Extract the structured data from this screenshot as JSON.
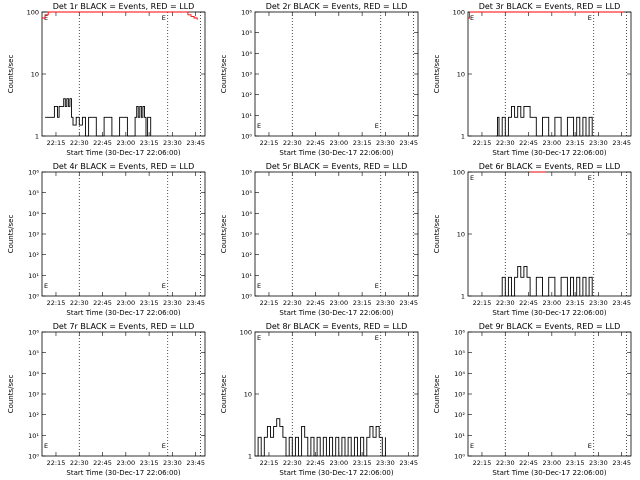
{
  "chart_data": [
    {
      "type": "line",
      "title": "Det 1r BLACK = Events, RED = LLD",
      "xlabel": "Start Time (30-Dec-17 22:06:00)",
      "ylabel": "Counts/sec",
      "yscale": "log",
      "ylim": [
        1,
        100
      ],
      "y_tick_labels": [
        "1",
        "10",
        "100"
      ],
      "x_tick_labels": [
        "22:15",
        "22:30",
        "22:45",
        "23:00",
        "23:15",
        "23:30",
        "23:45"
      ],
      "xlim_min": [
        0,
        105
      ],
      "markers_min": [
        24,
        81,
        102
      ],
      "series": [
        {
          "name": "Events",
          "color": "#000000",
          "x": [
            2,
            7,
            8,
            10,
            11,
            13,
            14,
            15,
            16,
            17,
            18,
            19,
            20,
            22,
            24,
            26,
            28,
            30,
            35,
            40,
            45,
            50,
            55,
            60,
            61,
            62,
            63,
            64,
            65,
            66,
            67,
            68,
            70
          ],
          "y": [
            2,
            2,
            3,
            2,
            3,
            3,
            4,
            3,
            4,
            3,
            4,
            2,
            1.5,
            2,
            1.5,
            2,
            1,
            2,
            1,
            2,
            1,
            2,
            1,
            2,
            3,
            2,
            3,
            2,
            3,
            2,
            1,
            2,
            1
          ]
        },
        {
          "name": "LLD",
          "color": "#ff0000",
          "x": [
            0,
            2,
            4,
            6,
            8,
            10,
            12,
            14,
            16,
            18,
            20,
            24,
            28,
            32,
            36,
            40,
            44,
            48,
            52,
            56,
            60,
            64,
            68,
            72,
            76,
            78,
            80,
            82,
            84,
            86,
            88,
            90,
            92,
            94,
            96,
            98,
            100
          ],
          "y": [
            80,
            90,
            100,
            100,
            100,
            100,
            100,
            100,
            100,
            100,
            100,
            100,
            100,
            100,
            100,
            100,
            100,
            100,
            100,
            100,
            100,
            100,
            100,
            100,
            100,
            100,
            100,
            100,
            100,
            100,
            100,
            100,
            100,
            90,
            85,
            80,
            75
          ]
        }
      ]
    },
    {
      "type": "line",
      "title": "Det 2r BLACK = Events, RED = LLD",
      "xlabel": "Start Time (30-Dec-17 22:06:00)",
      "ylabel": "Counts/sec",
      "yscale": "log",
      "ylim": [
        1,
        1000000
      ],
      "y_tick_labels": [
        "10⁰",
        "10¹",
        "10²",
        "10³",
        "10⁴",
        "10⁵",
        "10⁶"
      ],
      "x_tick_labels": [
        "22:15",
        "22:30",
        "22:45",
        "23:00",
        "23:15",
        "23:30",
        "23:45"
      ],
      "xlim_min": [
        0,
        105
      ],
      "markers_min": [
        24,
        81,
        102
      ],
      "series": []
    },
    {
      "type": "line",
      "title": "Det 3r BLACK = Events, RED = LLD",
      "xlabel": "Start Time (30-Dec-17 22:06:00)",
      "ylabel": "Counts/sec",
      "yscale": "log",
      "ylim": [
        1,
        100
      ],
      "y_tick_labels": [
        "1",
        "10",
        "100"
      ],
      "x_tick_labels": [
        "22:15",
        "22:30",
        "22:45",
        "23:00",
        "23:15",
        "23:30",
        "23:45"
      ],
      "xlim_min": [
        0,
        105
      ],
      "markers_min": [
        24,
        81,
        102
      ],
      "series": [
        {
          "name": "Events",
          "color": "#000000",
          "x": [
            18,
            19,
            20,
            22,
            24,
            26,
            28,
            30,
            32,
            34,
            36,
            40,
            44,
            48,
            52,
            56,
            60,
            64,
            68,
            70,
            72,
            74,
            76,
            78,
            80
          ],
          "y": [
            1,
            2,
            1,
            2,
            1,
            2,
            3,
            2,
            3,
            2,
            3,
            2,
            1,
            2,
            1,
            2,
            1,
            2,
            1,
            2,
            1,
            2,
            1,
            2,
            1
          ]
        },
        {
          "name": "LLD",
          "color": "#ff0000",
          "x": [
            0,
            1,
            3,
            5,
            8,
            12,
            16,
            20,
            24,
            28,
            32,
            36,
            40,
            44,
            48,
            52,
            56,
            60,
            64,
            68,
            72,
            76,
            80,
            84,
            88,
            92,
            96,
            100
          ],
          "y": [
            80,
            100,
            100,
            100,
            100,
            100,
            100,
            100,
            100,
            100,
            100,
            100,
            100,
            100,
            100,
            100,
            100,
            100,
            100,
            100,
            100,
            100,
            100,
            100,
            100,
            100,
            100,
            100
          ]
        }
      ]
    },
    {
      "type": "line",
      "title": "Det 4r BLACK = Events, RED = LLD",
      "xlabel": "Start Time (30-Dec-17 22:06:00)",
      "ylabel": "Counts/sec",
      "yscale": "log",
      "ylim": [
        1,
        1000000
      ],
      "y_tick_labels": [
        "10⁰",
        "10¹",
        "10²",
        "10³",
        "10⁴",
        "10⁵",
        "10⁶"
      ],
      "x_tick_labels": [
        "22:15",
        "22:30",
        "22:45",
        "23:00",
        "23:15",
        "23:30",
        "23:45"
      ],
      "xlim_min": [
        0,
        105
      ],
      "markers_min": [
        24,
        81,
        102
      ],
      "series": []
    },
    {
      "type": "line",
      "title": "Det 5r BLACK = Events, RED = LLD",
      "xlabel": "Start Time (30-Dec-17 22:06:00)",
      "ylabel": "Counts/sec",
      "yscale": "log",
      "ylim": [
        1,
        1000000
      ],
      "y_tick_labels": [
        "10⁰",
        "10¹",
        "10²",
        "10³",
        "10⁴",
        "10⁵",
        "10⁶"
      ],
      "x_tick_labels": [
        "22:15",
        "22:30",
        "22:45",
        "23:00",
        "23:15",
        "23:30",
        "23:45"
      ],
      "xlim_min": [
        0,
        105
      ],
      "markers_min": [
        24,
        81,
        102
      ],
      "series": []
    },
    {
      "type": "line",
      "title": "Det 6r BLACK = Events, RED = LLD",
      "xlabel": "Start Time (30-Dec-17 22:06:00)",
      "ylabel": "Counts/sec",
      "yscale": "log",
      "ylim": [
        1,
        100
      ],
      "y_tick_labels": [
        "1",
        "10",
        "100"
      ],
      "x_tick_labels": [
        "22:15",
        "22:30",
        "22:45",
        "23:00",
        "23:15",
        "23:30",
        "23:45"
      ],
      "xlim_min": [
        0,
        105
      ],
      "markers_min": [
        24,
        81,
        102
      ],
      "series": [
        {
          "name": "Events",
          "color": "#000000",
          "x": [
            20,
            22,
            24,
            26,
            28,
            30,
            32,
            34,
            36,
            38,
            40,
            44,
            48,
            52,
            56,
            60,
            64,
            66,
            68,
            70,
            72,
            74,
            76,
            78,
            80
          ],
          "y": [
            1,
            2,
            1,
            2,
            1,
            2,
            3,
            2,
            3,
            2,
            1,
            2,
            1,
            2,
            1,
            2,
            1,
            2,
            1,
            2,
            1,
            2,
            1,
            2,
            1
          ]
        },
        {
          "name": "LLD",
          "color": "#ff0000",
          "x": [
            40,
            45,
            50
          ],
          "y": [
            100,
            100,
            100
          ]
        }
      ]
    },
    {
      "type": "line",
      "title": "Det 7r BLACK = Events, RED = LLD",
      "xlabel": "Start Time (30-Dec-17 22:06:00)",
      "ylabel": "Counts/sec",
      "yscale": "log",
      "ylim": [
        1,
        1000000
      ],
      "y_tick_labels": [
        "10⁰",
        "10¹",
        "10²",
        "10³",
        "10⁴",
        "10⁵",
        "10⁶"
      ],
      "x_tick_labels": [
        "22:15",
        "22:30",
        "22:45",
        "23:00",
        "23:15",
        "23:30",
        "23:45"
      ],
      "xlim_min": [
        0,
        105
      ],
      "markers_min": [
        24,
        81,
        102
      ],
      "series": []
    },
    {
      "type": "line",
      "title": "Det 8r BLACK = Events, RED = LLD",
      "xlabel": "Start Time (30-Dec-17 22:06:00)",
      "ylabel": "Counts/sec",
      "yscale": "log",
      "ylim": [
        1,
        100
      ],
      "y_tick_labels": [
        "1",
        "10",
        "100"
      ],
      "x_tick_labels": [
        "22:15",
        "22:30",
        "22:45",
        "23:00",
        "23:15",
        "23:30",
        "23:45"
      ],
      "xlim_min": [
        0,
        105
      ],
      "markers_min": [
        24,
        81,
        102
      ],
      "series": [
        {
          "name": "Events",
          "color": "#000000",
          "x": [
            0,
            2,
            4,
            6,
            8,
            10,
            12,
            14,
            16,
            18,
            20,
            22,
            24,
            26,
            28,
            30,
            32,
            34,
            36,
            38,
            40,
            42,
            44,
            46,
            48,
            50,
            52,
            54,
            56,
            58,
            60,
            62,
            64,
            66,
            68,
            70,
            72,
            74,
            76,
            78,
            80,
            82,
            84
          ],
          "y": [
            1,
            2,
            1,
            2,
            3,
            2,
            3,
            4,
            3,
            2,
            1,
            2,
            1,
            2,
            1,
            3,
            2,
            1,
            2,
            1,
            2,
            1,
            2,
            1,
            2,
            1,
            2,
            1,
            2,
            1,
            2,
            1,
            2,
            1,
            2,
            1,
            2,
            3,
            2,
            3,
            2,
            1,
            2
          ]
        }
      ]
    },
    {
      "type": "line",
      "title": "Det 9r BLACK = Events, RED = LLD",
      "xlabel": "Start Time (30-Dec-17 22:06:00)",
      "ylabel": "Counts/sec",
      "yscale": "log",
      "ylim": [
        1,
        1000000
      ],
      "y_tick_labels": [
        "10⁰",
        "10¹",
        "10²",
        "10³",
        "10⁴",
        "10⁵",
        "10⁶"
      ],
      "x_tick_labels": [
        "22:15",
        "22:30",
        "22:45",
        "23:00",
        "23:15",
        "23:30",
        "23:45"
      ],
      "xlim_min": [
        0,
        105
      ],
      "markers_min": [
        24,
        81,
        102
      ],
      "series": []
    }
  ]
}
